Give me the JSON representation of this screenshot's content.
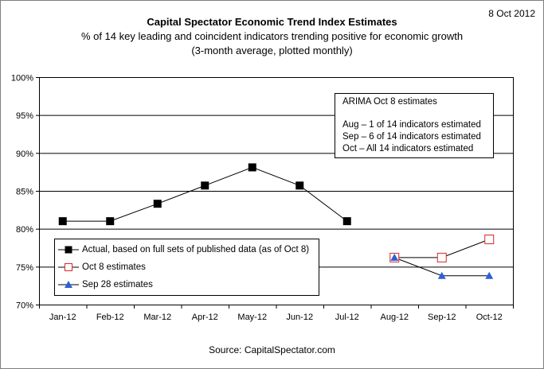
{
  "date": "8 Oct 2012",
  "title": "Capital Spectator Economic Trend Index Estimates",
  "subtitle_line1": "% of 14 key leading and coincident indicators trending positive for economic growth",
  "subtitle_line2": "(3-month average, plotted monthly)",
  "source": "Source: CapitalSpectator.com",
  "annotation": {
    "title": "ARIMA Oct 8 estimates",
    "lines": [
      "Aug – 1 of 14 indicators estimated",
      "Sep –  6 of 14 indicators estimated",
      "Oct  – All 14 indicators estimated"
    ]
  },
  "colors": {
    "actual": "#000000",
    "oct8": "#d62728",
    "sep28": "#2f5fd8",
    "line": "#000000"
  },
  "chart_data": {
    "type": "line",
    "categories": [
      "Jan-12",
      "Feb-12",
      "Mar-12",
      "Apr-12",
      "May-12",
      "Jun-12",
      "Jul-12",
      "Aug-12",
      "Sep-12",
      "Oct-12"
    ],
    "y_tick_labels": [
      "70%",
      "75%",
      "80%",
      "85%",
      "90%",
      "95%",
      "100%"
    ],
    "ylim": [
      70,
      100
    ],
    "y_tick_step": 5,
    "grid": true,
    "legend_position": "bottom-left",
    "series": [
      {
        "name": "Actual, based on full sets of published data (as of Oct 8)",
        "marker": "filled-square",
        "values": [
          81.0,
          81.0,
          83.3,
          85.7,
          88.1,
          85.7,
          81.0,
          null,
          null,
          null
        ]
      },
      {
        "name": "Oct 8 estimates",
        "marker": "open-square",
        "values": [
          null,
          null,
          null,
          null,
          null,
          null,
          null,
          76.2,
          76.2,
          78.6
        ]
      },
      {
        "name": "Sep 28 estimates",
        "marker": "triangle",
        "values": [
          null,
          null,
          null,
          null,
          null,
          null,
          null,
          76.2,
          73.8,
          73.8
        ]
      }
    ]
  }
}
